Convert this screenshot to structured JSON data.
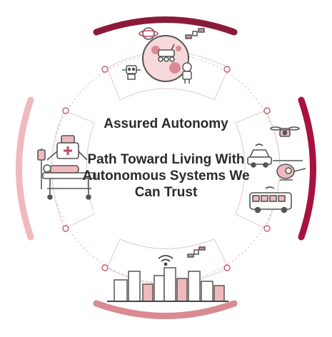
{
  "diagram": {
    "title": "Assured Autonomy",
    "subtitle": "Path Toward Living With Autonomous Systems We Can Trust",
    "segments": [
      {
        "name": "space",
        "icons": [
          "planet-icon",
          "satellite-icon",
          "rover-icon",
          "robot-icon",
          "astronaut-icon"
        ],
        "arc_color": "#8b1a3a"
      },
      {
        "name": "vehicles",
        "icons": [
          "drone-icon",
          "car-icon",
          "helicopter-icon",
          "bus-icon"
        ],
        "arc_color": "#a8123d"
      },
      {
        "name": "smart-city",
        "icons": [
          "wifi-icon",
          "satellite-icon",
          "city-skyline-icon"
        ],
        "arc_color": "#d98a92"
      },
      {
        "name": "medical",
        "icons": [
          "surgical-robot-icon",
          "hospital-bed-icon",
          "iv-drip-icon"
        ],
        "arc_color": "#f0b9bd"
      }
    ]
  },
  "colors": {
    "dark": "#8b1a3a",
    "red": "#a8123d",
    "pink": "#d98a92",
    "light_pink": "#f0b9bd",
    "ink": "#2b2b2b"
  }
}
